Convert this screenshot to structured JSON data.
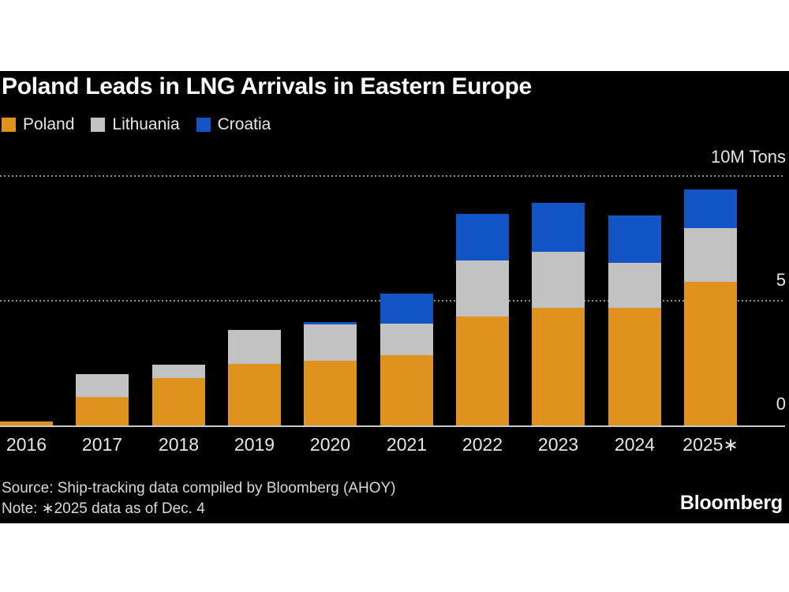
{
  "header": {
    "title": "Poland Leads in LNG Arrivals in Eastern Europe"
  },
  "axis": {
    "top_label": "10M Tons",
    "mid_label": "5",
    "zero_label": "0"
  },
  "chart_data": {
    "type": "bar",
    "stacked": true,
    "title": "Poland Leads in LNG Arrivals in Eastern Europe",
    "unit": "M Tons",
    "categories": [
      "2016",
      "2017",
      "2018",
      "2019",
      "2020",
      "2021",
      "2022",
      "2023",
      "2024",
      "2025∗"
    ],
    "series": [
      {
        "name": "Poland",
        "color": "#E0921F",
        "values": [
          0.15,
          1.15,
          1.9,
          2.45,
          2.6,
          2.8,
          4.35,
          4.7,
          4.7,
          5.75
        ]
      },
      {
        "name": "Lithuania",
        "color": "#C2C2C2",
        "values": [
          0,
          0.9,
          0.55,
          1.35,
          1.45,
          1.25,
          2.25,
          2.25,
          1.8,
          2.15
        ]
      },
      {
        "name": "Croatia",
        "color": "#1254C4",
        "values": [
          0,
          0,
          0,
          0,
          0.1,
          1.2,
          1.85,
          1.95,
          1.9,
          1.55
        ]
      }
    ],
    "ylim": [
      0,
      10
    ],
    "ytick_labels": [
      "0",
      "5",
      "10M Tons"
    ],
    "grid": "dotted-horizontal",
    "gridlines_at": [
      5,
      10
    ],
    "legend_position": "top-left",
    "background": "#000000"
  },
  "footer": {
    "source": "Source: Ship-tracking data compiled by Bloomberg (AHOY)",
    "note": "Note: ∗2025 data as of Dec. 4",
    "brand": "Bloomberg"
  }
}
